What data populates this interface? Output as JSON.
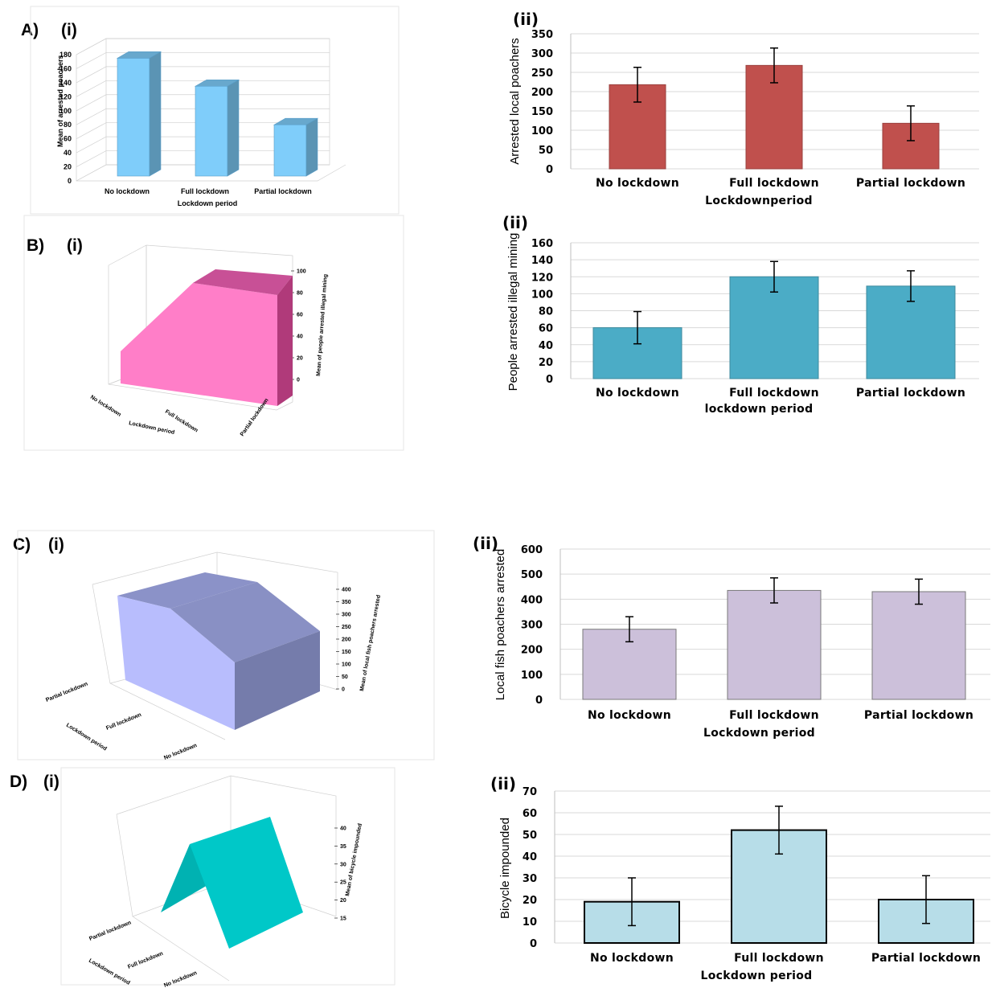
{
  "panels": {
    "A": {
      "label": "A)",
      "sub_i": "(i)",
      "sub_ii": "(ii)"
    },
    "B": {
      "label": "B)",
      "sub_i": "(i)",
      "sub_ii": "(ii)"
    },
    "C": {
      "label": "C)",
      "sub_i": "(i)",
      "sub_ii": "(ii)"
    },
    "D": {
      "label": "D)",
      "sub_i": "(i)",
      "sub_ii": "(ii)"
    }
  },
  "chart_data": [
    {
      "id": "A-i",
      "type": "bar",
      "style": "3d",
      "categories": [
        "No lockdown",
        "Full lockdown",
        "Partial lockdown"
      ],
      "values": [
        175,
        135,
        80
      ],
      "xlabel": "Lockdown period",
      "ylabel": "Mean of arrested poachers",
      "ylim": [
        0,
        180
      ],
      "yticks": [
        "0",
        "20",
        "40",
        "60",
        "80",
        "100",
        "120",
        "140",
        "160",
        "180"
      ],
      "color": "#7fcdfa"
    },
    {
      "id": "A-ii",
      "type": "bar",
      "categories": [
        "No lockdown",
        "Full lockdown",
        "Partial lockdown"
      ],
      "values": [
        218,
        268,
        118
      ],
      "errors": [
        45,
        45,
        45
      ],
      "xlabel": "Lockdownperiod",
      "ylabel": "Arrested local poachers",
      "ylim": [
        0,
        350
      ],
      "yticks": [
        "0",
        "50",
        "100",
        "150",
        "200",
        "250",
        "300",
        "350"
      ],
      "color": "#c0504d",
      "grid": true
    },
    {
      "id": "B-i",
      "type": "area",
      "style": "3d",
      "categories": [
        "No lockdown",
        "Full lockdown",
        "Partial lockdown"
      ],
      "values": [
        20,
        90,
        95
      ],
      "xlabel": "Lockdown period",
      "ylabel": "Mean of people arrested illegal mining",
      "ylim": [
        0,
        100
      ],
      "yticks": [
        "0",
        "20",
        "40",
        "60",
        "80",
        "100"
      ],
      "color": "#ff7ec8"
    },
    {
      "id": "B-ii",
      "type": "bar",
      "categories": [
        "No lockdown",
        "Full lockdown",
        "Partial lockdown"
      ],
      "values": [
        60,
        120,
        109
      ],
      "errors": [
        19,
        18,
        18
      ],
      "xlabel": "lockdown period",
      "ylabel": "People arrested illegal mining",
      "ylim": [
        0,
        160
      ],
      "yticks": [
        "0",
        "20",
        "40",
        "60",
        "80",
        "100",
        "120",
        "140",
        "160"
      ],
      "color": "#4bacc6",
      "grid": true
    },
    {
      "id": "C-i",
      "type": "area",
      "style": "3d",
      "categories": [
        "Partial lockdown",
        "Full lockdown",
        "No lockdown"
      ],
      "values": [
        400,
        420,
        250
      ],
      "xlabel": "Lockdown period",
      "ylabel": "Mean of local fish poachers arrested",
      "ylim": [
        0,
        400
      ],
      "yticks": [
        "0",
        "50",
        "100",
        "150",
        "200",
        "250",
        "300",
        "350",
        "400"
      ],
      "color": "#8b92c8"
    },
    {
      "id": "C-ii",
      "type": "bar",
      "categories": [
        "No lockdown",
        "Full lockdown",
        "Partial lockdown"
      ],
      "values": [
        280,
        435,
        430
      ],
      "errors": [
        50,
        50,
        50
      ],
      "xlabel": "Lockdown period",
      "ylabel": "Local fish poachers arrested",
      "ylim": [
        0,
        600
      ],
      "yticks": [
        "0",
        "100",
        "200",
        "300",
        "400",
        "500",
        "600"
      ],
      "color": "#ccc0da",
      "grid": true
    },
    {
      "id": "D-i",
      "type": "area",
      "style": "3d",
      "categories": [
        "Partial lockdown",
        "Full lockdown",
        "No lockdown"
      ],
      "values": [
        20,
        42,
        18
      ],
      "xlabel": "Lockdown period",
      "ylabel": "Mean of bicycle impounded",
      "ylim": [
        15,
        40
      ],
      "yticks": [
        "15",
        "20",
        "25",
        "30",
        "35",
        "40"
      ],
      "color": "#00c8c8"
    },
    {
      "id": "D-ii",
      "type": "bar",
      "categories": [
        "No lockdown",
        "Full lockdown",
        "Partial lockdown"
      ],
      "values": [
        19,
        52,
        20
      ],
      "errors": [
        11,
        11,
        11
      ],
      "xlabel": "Lockdown period",
      "ylabel": "Bicycle impounded",
      "ylim": [
        0,
        70
      ],
      "yticks": [
        "0",
        "10",
        "20",
        "30",
        "40",
        "50",
        "60",
        "70"
      ],
      "color": "#b7dde8",
      "grid": true
    }
  ]
}
